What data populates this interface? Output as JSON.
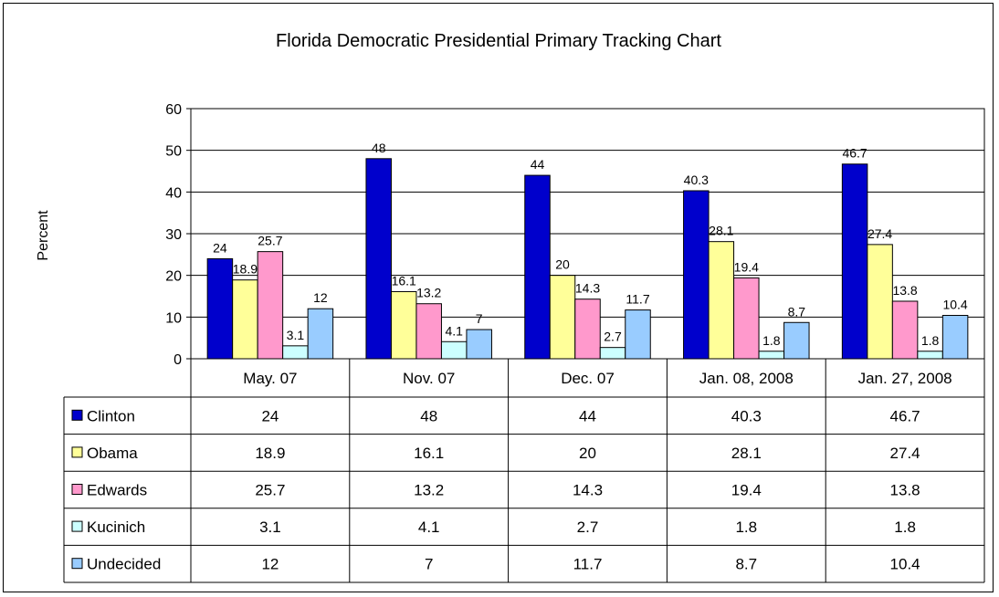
{
  "chart_data": {
    "type": "bar",
    "title": "Florida Democratic Presidential Primary Tracking Chart",
    "ylabel": "Percent",
    "xlabel": "",
    "ylim": [
      0,
      60
    ],
    "yticks": [
      "0",
      "10",
      "20",
      "30",
      "40",
      "50",
      "60"
    ],
    "grid": true,
    "legend": "data-table",
    "categories": [
      "May. 07",
      "Nov. 07",
      "Dec. 07",
      "Jan. 08, 2008",
      "Jan. 27, 2008"
    ],
    "series": [
      {
        "name": "Clinton",
        "color": "#0000CC",
        "values": [
          24,
          48,
          44,
          40.3,
          46.7
        ],
        "labels": [
          "24",
          "48",
          "44",
          "40.3",
          "46.7"
        ]
      },
      {
        "name": "Obama",
        "color": "#FFFF99",
        "values": [
          18.9,
          16.1,
          20,
          28.1,
          27.4
        ],
        "labels": [
          "18.9",
          "16.1",
          "20",
          "28.1",
          "27.4"
        ]
      },
      {
        "name": "Edwards",
        "color": "#FF99CC",
        "values": [
          25.7,
          13.2,
          14.3,
          19.4,
          13.8
        ],
        "labels": [
          "25.7",
          "13.2",
          "14.3",
          "19.4",
          "13.8"
        ]
      },
      {
        "name": "Kucinich",
        "color": "#CCFFFF",
        "values": [
          3.1,
          4.1,
          2.7,
          1.8,
          1.8
        ],
        "labels": [
          "3.1",
          "4.1",
          "2.7",
          "1.8",
          "1.8"
        ]
      },
      {
        "name": "Undecided",
        "color": "#99CCFF",
        "values": [
          12,
          7,
          11.7,
          8.7,
          10.4
        ],
        "labels": [
          "12",
          "7",
          "11.7",
          "8.7",
          "10.4"
        ]
      }
    ]
  }
}
